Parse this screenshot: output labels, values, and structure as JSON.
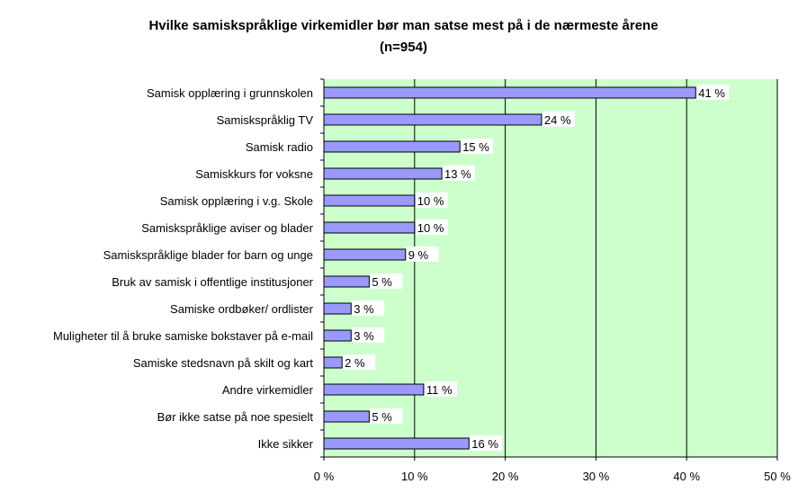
{
  "chart_data": {
    "type": "bar",
    "orientation": "horizontal",
    "title": "Hvilke samiskspråklige virkemidler bør man satse mest på i de nærmeste årene",
    "subtitle": "(n=954)",
    "categories": [
      "Samisk opplæring i grunnskolen",
      "Samiskspråklig TV",
      "Samisk radio",
      "Samiskkurs for voksne",
      "Samisk opplæring i v.g. Skole",
      "Samiskspråklige aviser og blader",
      "Samiskspråklige blader for barn og unge",
      "Bruk av samisk i offentlige institusjoner",
      "Samiske ordbøker/ ordlister",
      "Muligheter til å bruke samiske bokstaver på e-mail",
      "Samiske stedsnavn på skilt og kart",
      "Andre virkemidler",
      "Bør ikke satse på noe spesielt",
      "Ikke sikker"
    ],
    "values": [
      41,
      24,
      15,
      13,
      10,
      10,
      9,
      5,
      3,
      3,
      2,
      11,
      5,
      16
    ],
    "value_labels": [
      "41 %",
      "24 %",
      "15 %",
      "13 %",
      "10 %",
      "10 %",
      "9 %",
      "5 %",
      "3 %",
      "3 %",
      "2 %",
      "11 %",
      "5 %",
      "16 %"
    ],
    "xlim": [
      0,
      50
    ],
    "xticks": [
      0,
      10,
      20,
      30,
      40,
      50
    ],
    "xtick_labels": [
      "0 %",
      "10 %",
      "20 %",
      "30 %",
      "40 %",
      "50 %"
    ],
    "grid": true,
    "colors": {
      "bar_fill": "#9999ff",
      "bar_stroke": "#000000",
      "plot_background": "#ccffcc",
      "gridline": "#000000"
    }
  }
}
